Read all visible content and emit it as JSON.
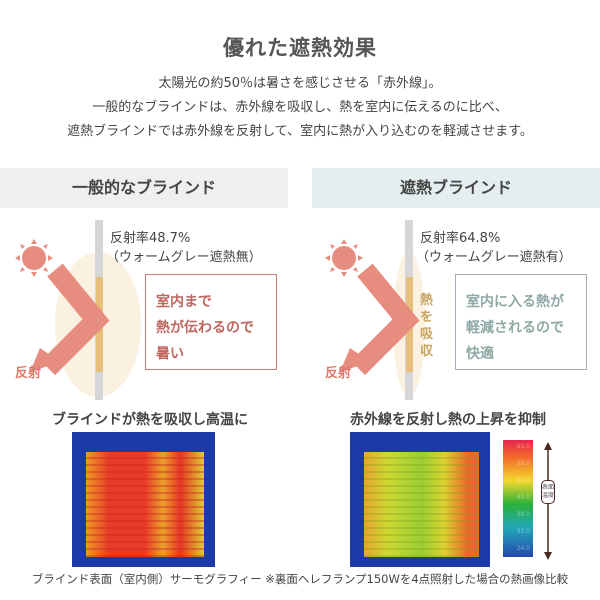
{
  "title": "優れた遮熱効果",
  "intro": [
    "太陽光の約50％は暑さを感じさせる「赤外線」。",
    "一般的なブラインドは、赤外線を吸収し、熱を室内に伝えるのに比べ、",
    "遮熱ブラインドでは赤外線を反射して、室内に熱が入り込むのを軽減させます。"
  ],
  "left": {
    "header": "一般的なブラインド",
    "rate": "反射率48.7%",
    "product": "（ウォームグレー遮熱無）",
    "message": [
      "室内まで",
      "熱が伝わるので",
      "暑い"
    ],
    "reflect": "反射",
    "caption": "ブラインドが熱を吸収し高温に"
  },
  "right": {
    "header": "遮熱ブラインド",
    "rate": "反射率64.8%",
    "product": "（ウォームグレー遮熱有）",
    "message": [
      "室内に入る熱が",
      "軽減されるので",
      "快適"
    ],
    "absorb": "熱を吸収",
    "reflect": "反射",
    "caption": "赤外線を反射し熱の上昇を抑制"
  },
  "scale": {
    "ticks": [
      "65.0",
      "58.0",
      "52.0",
      "45.0",
      "38.0",
      "31.0",
      "24.0"
    ],
    "label": "表面温度"
  },
  "footer": "ブラインド表面（室内側）サーモグラフィー ※裏面ヘレフランプ150Wを4点照射した場合の熱画像比較",
  "colors": {
    "arrow": "#e68d80",
    "left_header": "#efefef",
    "right_header": "#e4eeee",
    "left_text": "#c0665f",
    "right_text": "#8ea9a6"
  }
}
